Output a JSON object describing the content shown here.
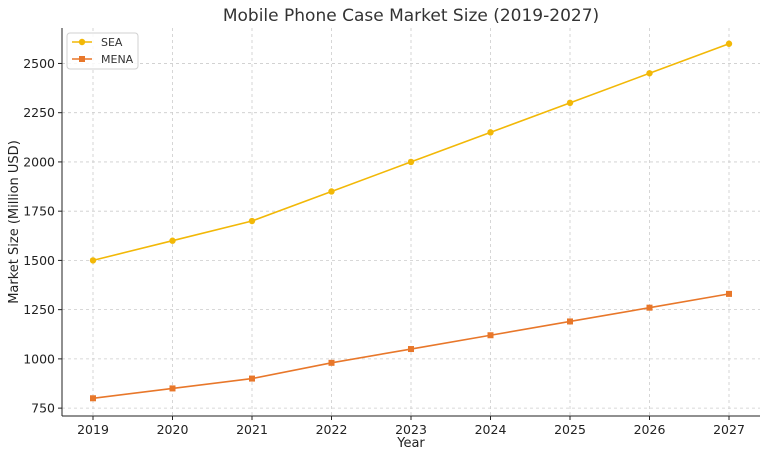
{
  "chart_data": {
    "type": "line",
    "title": "Mobile Phone Case Market Size (2019-2027)",
    "xlabel": "Year",
    "ylabel": "Market Size (Million USD)",
    "x": [
      "2019",
      "2020",
      "2021",
      "2022",
      "2023",
      "2024",
      "2025",
      "2026",
      "2027"
    ],
    "yticks": [
      750,
      1000,
      1250,
      1500,
      1750,
      2000,
      2250,
      2500
    ],
    "ylim": [
      710,
      2680
    ],
    "grid": true,
    "legend_position": "top-left",
    "series": [
      {
        "name": "SEA",
        "color": "#F2B807",
        "marker": "circle",
        "values": [
          1500,
          1600,
          1700,
          1850,
          2000,
          2150,
          2300,
          2450,
          2600
        ]
      },
      {
        "name": "MENA",
        "color": "#E8772A",
        "marker": "square",
        "values": [
          800,
          850,
          900,
          980,
          1050,
          1120,
          1190,
          1260,
          1330
        ]
      }
    ]
  }
}
